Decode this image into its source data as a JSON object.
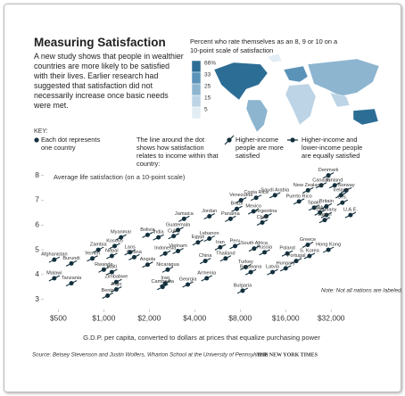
{
  "header": {
    "title": "Measuring Satisfaction",
    "intro": "A new study shows that people in wealthier countries are more likely to be satisfied with their lives. Earlier research had suggested that satisfaction did not necessarily increase once basic needs were met."
  },
  "map_legend": {
    "title": "Percent who rate themselves as an 8, 9 or 10 on a 10-point scale of satisfaction",
    "ticks": [
      {
        "value": 66,
        "label": "66%"
      },
      33,
      25,
      15,
      5
    ],
    "colors": [
      "#2c6d95",
      "#5b93b8",
      "#8db5d0",
      "#bcd4e5",
      "#e3edf4"
    ]
  },
  "key": {
    "title": "KEY:",
    "dot": "Each dot represents one country",
    "line": "The line around the dot shows how satisfaction relates to income within that country:",
    "steep": "Higher-income people are more satisfied",
    "flat": "Higher-income and lower-income people are equally satisfied"
  },
  "chart_data": {
    "type": "scatter",
    "log_x": true,
    "color": "#13303d",
    "y_label": "Average life satisfaction (on a 10-point scale)",
    "x_label": "G.D.P. per capita, converted to dollars at prices that equalize purchasing power",
    "annotation": "Note: Not all nations are labeled.",
    "xlim": [
      400,
      50000
    ],
    "ylim": [
      2.7,
      8.6
    ],
    "xticks": [
      {
        "value": 500,
        "label": "$500"
      },
      {
        "value": 1000,
        "label": "$1,000"
      },
      {
        "value": 2000,
        "label": "$2,000"
      },
      {
        "value": 4000,
        "label": "$4,000"
      },
      {
        "value": 8000,
        "label": "$8,000"
      },
      {
        "value": 16000,
        "label": "$16,000"
      },
      {
        "value": 32000,
        "label": "$32,000"
      }
    ],
    "yticks": [
      3,
      4,
      5,
      6,
      7,
      8
    ],
    "labels": [
      "Denmark",
      "Canada",
      "Finland",
      "Norway",
      "Ireland",
      "New Zealand",
      "Costa Rica",
      "Saudi Arabia",
      "Venezuela",
      "Puerto Rico",
      "Spain",
      "Italy",
      "Britain",
      "Germany",
      "Japan",
      "U.S.",
      "U.A.E.",
      "Brazil",
      "Mexico",
      "Argentina",
      "Chile",
      "Panama",
      "Jordan",
      "Jamaica",
      "Guatemala",
      "Bolivia",
      "India",
      "Cuba",
      "Myanmar",
      "Egypt",
      "Lebanon",
      "Iran",
      "Vietnam",
      "Indonesia",
      "Thailand",
      "China",
      "Peru",
      "South Africa",
      "Russia",
      "Poland",
      "Greece",
      "S. Korea",
      "Portugal",
      "Hungary",
      "Hong Kong",
      "Latvia",
      "Turkey",
      "Botswana",
      "Bulgaria",
      "Armenia",
      "Georgia",
      "Iraq",
      "Cambodia",
      "Nicaragua",
      "Angola",
      "Ghana",
      "Kosovo",
      "Laos",
      "Nepal",
      "Zambia",
      "Yemen",
      "Burundi",
      "Afghanistan",
      "Malawi",
      "Tanzania",
      "Rwanda",
      "Haiti",
      "Zimbabwe",
      "Togo",
      "Benin"
    ],
    "x": [
      30700,
      27500,
      33800,
      40300,
      37200,
      22500,
      10200,
      13600,
      8100,
      19600,
      24700,
      27000,
      29800,
      29800,
      29000,
      38000,
      43000,
      7600,
      9800,
      11900,
      11200,
      6900,
      5000,
      3400,
      3100,
      1950,
      2300,
      2900,
      1300,
      4200,
      5000,
      5900,
      3100,
      2550,
      6400,
      4700,
      7400,
      9900,
      11600,
      16400,
      22400,
      23000,
      18800,
      16000,
      30700,
      13100,
      8700,
      9400,
      8300,
      4800,
      3600,
      2550,
      2450,
      2650,
      1950,
      1590,
      1180,
      1490,
      1130,
      920,
      840,
      610,
      470,
      470,
      610,
      1000,
      1130,
      1210,
      1210,
      1060
    ],
    "values": [
      8.0,
      7.6,
      7.6,
      7.4,
      7.2,
      7.4,
      7.1,
      7.2,
      7.0,
      6.95,
      6.7,
      6.5,
      6.75,
      6.4,
      6.2,
      6.9,
      6.4,
      6.65,
      6.55,
      6.35,
      6.1,
      6.25,
      6.35,
      6.25,
      5.8,
      5.6,
      5.5,
      5.55,
      5.5,
      5.3,
      5.45,
      5.1,
      4.95,
      4.85,
      4.65,
      4.55,
      5.15,
      5.05,
      4.9,
      4.85,
      5.2,
      4.75,
      4.55,
      4.25,
      5.0,
      4.1,
      4.3,
      4.1,
      3.35,
      3.85,
      3.6,
      3.65,
      3.5,
      4.2,
      4.4,
      4.7,
      5.15,
      4.9,
      4.75,
      5.0,
      4.65,
      4.45,
      4.6,
      3.85,
      3.65,
      4.2,
      4.1,
      3.7,
      3.4,
      3.15
    ]
  },
  "source": "Source: Betsey Stevenson and Justin Wolfers, Wharton School at the University of Pennsylvania",
  "credit": "THE NEW YORK TIMES"
}
